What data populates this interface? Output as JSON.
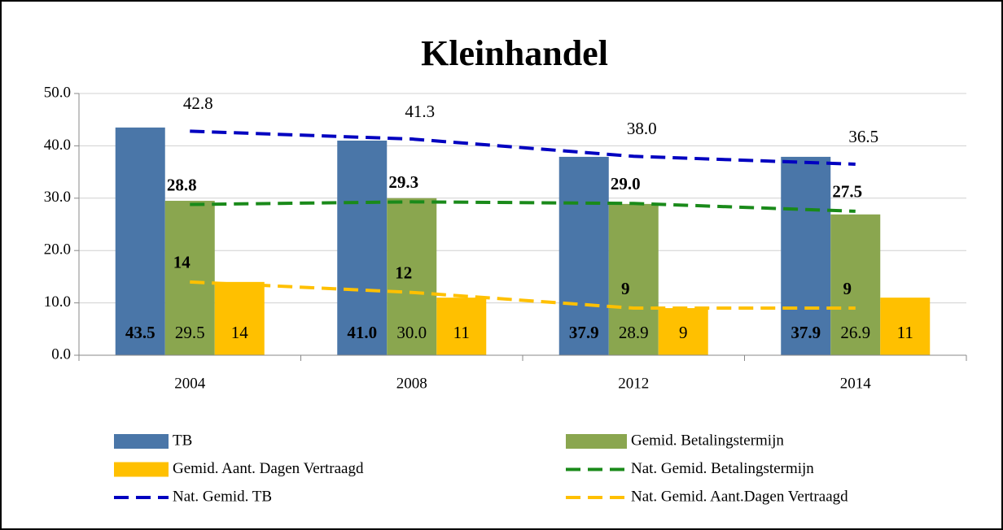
{
  "chart_data": {
    "type": "bar",
    "title": "Kleinhandel",
    "categories": [
      "2004",
      "2008",
      "2012",
      "2014"
    ],
    "ylim": [
      0,
      50
    ],
    "yticks": [
      {
        "value": 0,
        "label": "0.0"
      },
      {
        "value": 10,
        "label": "10.0"
      },
      {
        "value": 20,
        "label": "20.0"
      },
      {
        "value": 30,
        "label": "30.0"
      },
      {
        "value": 40,
        "label": "40.0"
      },
      {
        "value": 50,
        "label": "50.0"
      }
    ],
    "grid": true,
    "series": [
      {
        "name": "TB",
        "type": "bar",
        "color": "#4a76a8",
        "label_color": "#ffffff",
        "values": [
          43.5,
          41.0,
          37.9,
          37.9
        ],
        "value_labels": [
          "43.5",
          "41.0",
          "37.9",
          "37.9"
        ]
      },
      {
        "name": "Gemid. Betalingstermijn",
        "type": "bar",
        "color": "#8aa64f",
        "label_color": "#000000",
        "values": [
          29.5,
          30.0,
          28.9,
          26.9
        ],
        "value_labels": [
          "29.5",
          "30.0",
          "28.9",
          "26.9"
        ]
      },
      {
        "name": "Gemid. Aant. Dagen Vertraagd",
        "type": "bar",
        "color": "#ffc000",
        "label_color": "#000000",
        "values": [
          14,
          11,
          9,
          11
        ],
        "value_labels": [
          "14",
          "11",
          "9",
          "11"
        ]
      },
      {
        "name": "Nat. Gemid. Betalingstermijn",
        "type": "line",
        "color": "#1a8a1a",
        "label_color": "#4f6228",
        "values": [
          28.8,
          29.3,
          29.0,
          27.5
        ],
        "value_labels": [
          "28.8",
          "29.3",
          "29.0",
          "27.5"
        ]
      },
      {
        "name": "Nat. Gemid. TB",
        "type": "line",
        "color": "#0000c0",
        "label_color": "#0000c0",
        "values": [
          42.8,
          41.3,
          38.0,
          36.5
        ],
        "value_labels": [
          "42.8",
          "41.3",
          "38.0",
          "36.5"
        ]
      },
      {
        "name": "Nat. Gemid. Aant.Dagen Vertraagd",
        "type": "line",
        "color": "#ffc000",
        "label_color": "#ffc000",
        "values": [
          14,
          12,
          9,
          9
        ],
        "value_labels": [
          "14",
          "12",
          "9",
          "9"
        ]
      }
    ]
  }
}
